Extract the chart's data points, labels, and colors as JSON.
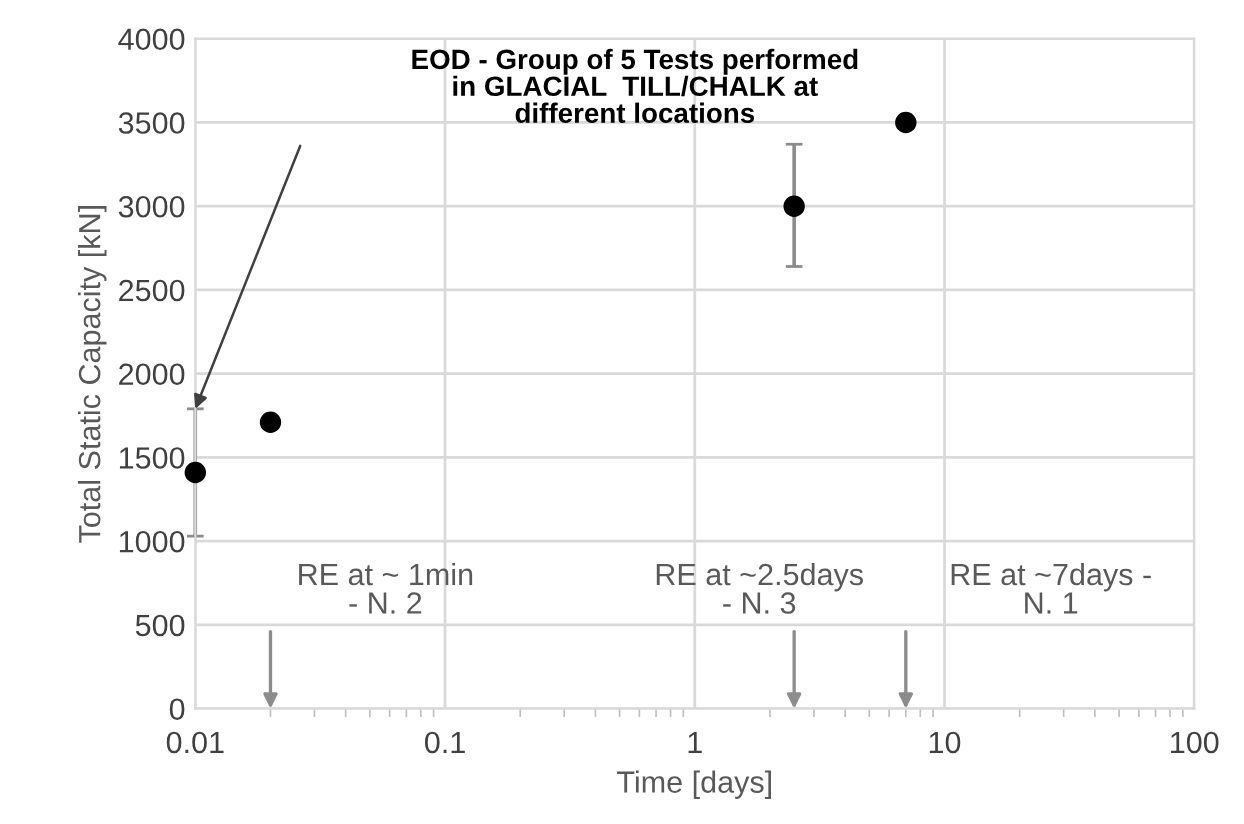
{
  "chart_data": {
    "type": "scatter",
    "xlabel": "Time [days]",
    "ylabel": "Total Static Capacity [kN]",
    "x": [
      0.01,
      0.02,
      2.5,
      7
    ],
    "series": [
      {
        "color": "#000000",
        "values": [
          1410,
          1710,
          3000,
          3500
        ],
        "errors": [
          [
            1030,
            1790
          ],
          null,
          [
            2640,
            3370
          ],
          null
        ]
      }
    ],
    "log": "x",
    "xlim": [
      0.01,
      100
    ],
    "xticks": [
      0.01,
      0.1,
      1,
      10,
      100
    ],
    "ylim": [
      0,
      4000
    ],
    "yticks": [
      0,
      500,
      1000,
      1500,
      2000,
      2500,
      3000,
      3500,
      4000
    ],
    "grid": true,
    "marker": "circle",
    "annotations": [
      "EOD - Group of 5 Tests performed\nin GLACIAL  TILL/CHALK at\ndifferent locations",
      "RE at ~ 1min\n- N. 2",
      "RE at ~2.5days\n- N. 3",
      "RE at ~7days -\nN. 1"
    ]
  }
}
